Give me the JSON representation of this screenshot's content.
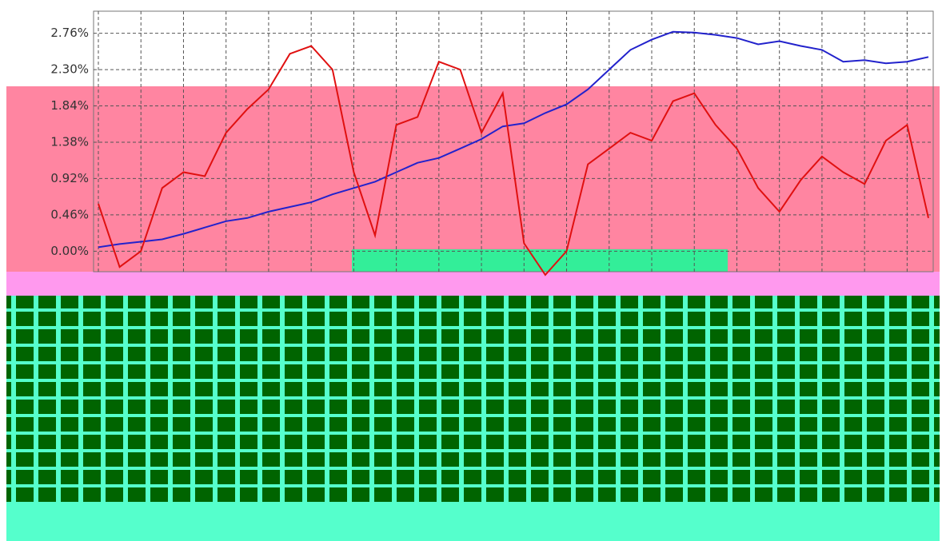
{
  "chart_data": {
    "type": "line",
    "categories": [
      null,
      null,
      null,
      null,
      null,
      null,
      null,
      null,
      null,
      null,
      null,
      null,
      null,
      null,
      null,
      null,
      null,
      null,
      null,
      null,
      null,
      null,
      null,
      null,
      null,
      null,
      null,
      null,
      null,
      null,
      null,
      null,
      null,
      null,
      null,
      null,
      null,
      null,
      null,
      null
    ],
    "series": [
      {
        "color": "#2222cc",
        "values": [
          0.05,
          0.09,
          0.12,
          0.15,
          0.22,
          0.3,
          0.38,
          0.42,
          0.5,
          0.56,
          0.62,
          0.72,
          0.8,
          0.88,
          1.0,
          1.12,
          1.18,
          1.3,
          1.42,
          1.58,
          1.62,
          1.75,
          1.86,
          2.05,
          2.3,
          2.55,
          2.68,
          2.78,
          2.77,
          2.74,
          2.7,
          2.62,
          2.66,
          2.6,
          2.55,
          2.4,
          2.42,
          2.38,
          2.4,
          2.46
        ]
      },
      {
        "color": "#e01010",
        "values": [
          0.6,
          -0.2,
          0.0,
          0.8,
          1.0,
          0.95,
          1.5,
          1.8,
          2.05,
          2.5,
          2.6,
          2.3,
          1.0,
          0.2,
          1.6,
          1.7,
          2.4,
          2.3,
          1.5,
          2.0,
          0.1,
          -0.3,
          0.0,
          1.1,
          1.3,
          1.5,
          1.4,
          1.9,
          2.0,
          1.6,
          1.3,
          0.8,
          0.5,
          0.9,
          1.2,
          1.0,
          0.85,
          1.4,
          1.6,
          0.42
        ]
      }
    ],
    "ylim": [
      -0.26,
      3.04
    ],
    "yticks": [
      {
        "value": 0,
        "label": "0.00%"
      },
      {
        "value": 0.46,
        "label": "0.46%"
      },
      {
        "value": 0.92,
        "label": "0.92%"
      },
      {
        "value": 1.38,
        "label": "1.38%"
      },
      {
        "value": 1.84,
        "label": "1.84%"
      },
      {
        "value": 2.3,
        "label": "2.30%"
      },
      {
        "value": 2.76,
        "label": "2.76%"
      }
    ],
    "grid": true
  }
}
